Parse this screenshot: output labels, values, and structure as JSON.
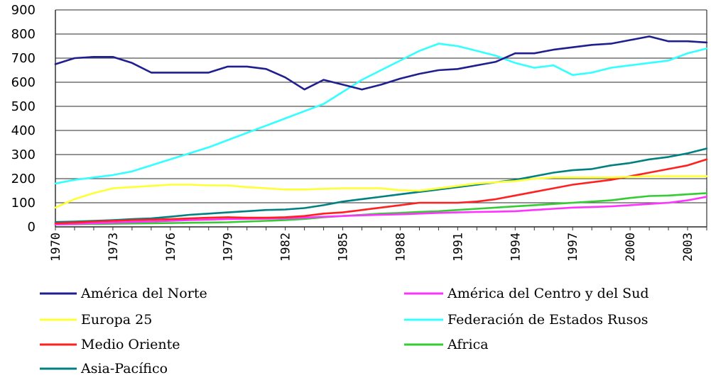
{
  "chart_data": {
    "type": "line",
    "title": "",
    "xlabel": "",
    "ylabel": "",
    "ylim": [
      0,
      900
    ],
    "yticks": [
      "0",
      "100",
      "200",
      "300",
      "400",
      "500",
      "600",
      "700",
      "800",
      "900"
    ],
    "xlim": [
      1970,
      2004
    ],
    "xticks": [
      "1970",
      "1973",
      "1976",
      "1979",
      "1982",
      "1985",
      "1988",
      "1991",
      "1994",
      "1997",
      "2000",
      "2003"
    ],
    "grid": "horizontal",
    "legend_position": "bottom",
    "x": [
      1970,
      1971,
      1972,
      1973,
      1974,
      1975,
      1976,
      1977,
      1978,
      1979,
      1980,
      1981,
      1982,
      1983,
      1984,
      1985,
      1986,
      1987,
      1988,
      1989,
      1990,
      1991,
      1992,
      1993,
      1994,
      1995,
      1996,
      1997,
      1998,
      1999,
      2000,
      2001,
      2002,
      2003,
      2004
    ],
    "series": [
      {
        "name": "América del Norte",
        "color": "#1f1f8f",
        "values": [
          675,
          700,
          705,
          705,
          680,
          640,
          640,
          640,
          640,
          665,
          665,
          655,
          620,
          570,
          610,
          590,
          570,
          590,
          615,
          635,
          650,
          655,
          670,
          685,
          720,
          720,
          735,
          745,
          755,
          760,
          775,
          790,
          770,
          770,
          765
        ]
      },
      {
        "name": "Europa 25",
        "color": "#ffff33",
        "values": [
          80,
          115,
          140,
          160,
          165,
          170,
          175,
          175,
          172,
          172,
          165,
          160,
          155,
          155,
          158,
          160,
          160,
          160,
          152,
          150,
          160,
          170,
          180,
          185,
          190,
          200,
          205,
          205,
          205,
          205,
          208,
          210,
          210,
          210,
          210
        ]
      },
      {
        "name": "Medio Oriente",
        "color": "#ff2020",
        "values": [
          15,
          18,
          22,
          25,
          28,
          30,
          32,
          35,
          38,
          40,
          38,
          38,
          40,
          45,
          55,
          60,
          70,
          80,
          90,
          100,
          100,
          100,
          105,
          115,
          130,
          145,
          160,
          175,
          185,
          195,
          210,
          225,
          240,
          255,
          280
        ]
      },
      {
        "name": "Asia-Pacífico",
        "color": "#008080",
        "values": [
          20,
          22,
          25,
          28,
          32,
          35,
          42,
          50,
          55,
          60,
          65,
          70,
          72,
          78,
          90,
          105,
          115,
          125,
          135,
          145,
          155,
          165,
          175,
          185,
          195,
          210,
          225,
          235,
          240,
          255,
          265,
          280,
          290,
          305,
          325
        ]
      },
      {
        "name": "América del Centro y del Sud",
        "color": "#ff33ff",
        "values": [
          10,
          12,
          15,
          18,
          20,
          22,
          25,
          28,
          30,
          32,
          33,
          34,
          35,
          38,
          42,
          45,
          48,
          50,
          52,
          55,
          58,
          60,
          62,
          63,
          65,
          70,
          75,
          80,
          82,
          85,
          90,
          95,
          100,
          110,
          125
        ]
      },
      {
        "name": "Federación de Estados Rusos",
        "color": "#33ffff",
        "values": [
          180,
          195,
          205,
          215,
          230,
          255,
          280,
          305,
          330,
          360,
          390,
          420,
          450,
          480,
          510,
          560,
          610,
          650,
          690,
          730,
          760,
          750,
          730,
          710,
          680,
          660,
          670,
          630,
          640,
          660,
          670,
          680,
          690,
          720,
          740
        ]
      },
      {
        "name": "Africa",
        "color": "#33cc33",
        "values": [
          10,
          11,
          12,
          13,
          14,
          15,
          16,
          17,
          18,
          19,
          22,
          25,
          28,
          33,
          40,
          45,
          50,
          55,
          58,
          62,
          65,
          70,
          75,
          80,
          85,
          90,
          95,
          100,
          105,
          110,
          120,
          128,
          130,
          135,
          140
        ]
      }
    ]
  },
  "legend": {
    "left": [
      "América del Norte",
      "Europa 25",
      "Medio Oriente",
      "Asia-Pacífico"
    ],
    "right": [
      "América del Centro y del Sud",
      "Federación de Estados Rusos",
      "Africa"
    ]
  }
}
